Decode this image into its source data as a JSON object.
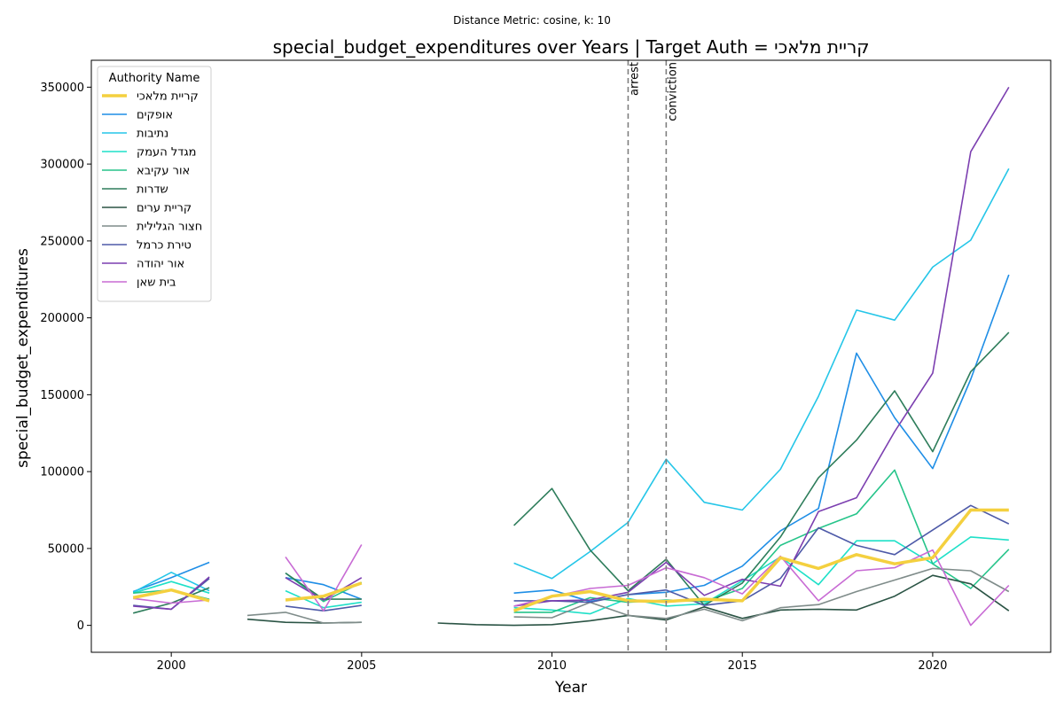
{
  "chart_data": {
    "type": "line",
    "suptitle": "Distance Metric: cosine, k: 10",
    "title": "special_budget_expenditures over Years | Target Auth = קריית מלאכי",
    "xlabel": "Year",
    "ylabel": "special_budget_expenditures",
    "xlim": [
      1997.9,
      2023.1
    ],
    "ylim": [
      -17500,
      367500
    ],
    "xticks": [
      2000,
      2005,
      2010,
      2015,
      2020
    ],
    "yticks": [
      0,
      50000,
      100000,
      150000,
      200000,
      250000,
      300000,
      350000
    ],
    "grid": false,
    "legend": {
      "title": "Authority Name",
      "placement": "upper-left"
    },
    "vlines": [
      {
        "x": 2012,
        "label": "arrest",
        "color": "#808080"
      },
      {
        "x": 2013,
        "label": "conviction",
        "color": "#808080"
      }
    ],
    "series": [
      {
        "name": "קריית מלאכי",
        "color": "#f4d03f",
        "target": true,
        "points": [
          [
            1999,
            18000
          ],
          [
            2000,
            23000
          ],
          [
            2001,
            16000
          ],
          [
            null,
            null
          ],
          [
            2003,
            16500
          ],
          [
            2004,
            19000
          ],
          [
            2005,
            27500
          ],
          [
            null,
            null
          ],
          [
            2009,
            9500
          ],
          [
            2010,
            19000
          ],
          [
            2011,
            22000
          ],
          [
            2012,
            16000
          ],
          [
            2013,
            15500
          ],
          [
            2014,
            17000
          ],
          [
            2015,
            16000
          ],
          [
            2016,
            44000
          ],
          [
            2017,
            37000
          ],
          [
            2018,
            46000
          ],
          [
            2019,
            40000
          ],
          [
            2020,
            44000
          ],
          [
            2021,
            75000
          ],
          [
            2022,
            75000
          ]
        ]
      },
      {
        "name": "אופקים",
        "color": "#1f8ee6",
        "points": [
          [
            1999,
            22000
          ],
          [
            2000,
            31000
          ],
          [
            2001,
            41000
          ],
          [
            null,
            null
          ],
          [
            2003,
            31000
          ],
          [
            2004,
            26500
          ],
          [
            2005,
            17000
          ],
          [
            null,
            null
          ],
          [
            2009,
            21000
          ],
          [
            2010,
            23000
          ],
          [
            2011,
            15500
          ],
          [
            2012,
            20000
          ],
          [
            2013,
            21500
          ],
          [
            2014,
            26000
          ],
          [
            2015,
            38500
          ],
          [
            2016,
            61500
          ],
          [
            2017,
            76000
          ],
          [
            2018,
            177000
          ],
          [
            2019,
            135000
          ],
          [
            2020,
            102000
          ],
          [
            2021,
            160000
          ],
          [
            2022,
            228000
          ]
        ]
      },
      {
        "name": "נתיבות",
        "color": "#25c6e8",
        "points": [
          [
            1999,
            21500
          ],
          [
            2000,
            34500
          ],
          [
            2001,
            22500
          ],
          [
            null,
            null
          ],
          [
            2009,
            40500
          ],
          [
            2010,
            30500
          ],
          [
            2011,
            48000
          ],
          [
            2012,
            67000
          ],
          [
            2013,
            108000
          ],
          [
            2014,
            80000
          ],
          [
            2015,
            75000
          ],
          [
            2016,
            101500
          ],
          [
            2017,
            149000
          ],
          [
            2018,
            205000
          ],
          [
            2019,
            198500
          ],
          [
            2020,
            233000
          ],
          [
            2021,
            250500
          ],
          [
            2022,
            297000
          ]
        ]
      },
      {
        "name": "מגדל העמק",
        "color": "#1fe0c8",
        "points": [
          [
            1999,
            21000
          ],
          [
            2000,
            28500
          ],
          [
            2001,
            21000
          ],
          [
            null,
            null
          ],
          [
            2003,
            22500
          ],
          [
            2004,
            11500
          ],
          [
            2005,
            15000
          ],
          [
            null,
            null
          ],
          [
            2009,
            11500
          ],
          [
            2010,
            10000
          ],
          [
            2011,
            7500
          ],
          [
            2012,
            17500
          ],
          [
            2013,
            12500
          ],
          [
            2014,
            14000
          ],
          [
            2015,
            29000
          ],
          [
            2016,
            44500
          ],
          [
            2017,
            26500
          ],
          [
            2018,
            55000
          ],
          [
            2019,
            55000
          ],
          [
            2020,
            40000
          ],
          [
            2021,
            57500
          ],
          [
            2022,
            55500
          ]
        ]
      },
      {
        "name": "אור עקיבא",
        "color": "#26c48a",
        "points": [
          [
            1999,
            21000
          ],
          [
            2000,
            23000
          ],
          [
            2001,
            17000
          ],
          [
            null,
            null
          ],
          [
            2003,
            34000
          ],
          [
            2004,
            15500
          ],
          [
            2005,
            28000
          ],
          [
            null,
            null
          ],
          [
            2009,
            8500
          ],
          [
            2010,
            8500
          ],
          [
            2011,
            18000
          ],
          [
            2012,
            15000
          ],
          [
            2013,
            16500
          ],
          [
            2014,
            15500
          ],
          [
            2015,
            24000
          ],
          [
            2016,
            52000
          ],
          [
            2017,
            63000
          ],
          [
            2018,
            72500
          ],
          [
            2019,
            101000
          ],
          [
            2020,
            40000
          ],
          [
            2021,
            24000
          ],
          [
            2022,
            49500
          ]
        ]
      },
      {
        "name": "שדרות",
        "color": "#2e7d5b",
        "points": [
          [
            1999,
            8000
          ],
          [
            2000,
            14500
          ],
          [
            2001,
            24500
          ],
          [
            null,
            null
          ],
          [
            2003,
            34000
          ],
          [
            2004,
            17000
          ],
          [
            2005,
            17000
          ],
          [
            null,
            null
          ],
          [
            2009,
            65000
          ],
          [
            2010,
            89000
          ],
          [
            2011,
            49000
          ],
          [
            2012,
            22500
          ],
          [
            2013,
            43000
          ],
          [
            2014,
            13000
          ],
          [
            2015,
            27500
          ],
          [
            2016,
            57500
          ],
          [
            2017,
            96000
          ],
          [
            2018,
            120500
          ],
          [
            2019,
            152500
          ],
          [
            2020,
            113000
          ],
          [
            2021,
            165000
          ],
          [
            2022,
            190500
          ]
        ]
      },
      {
        "name": "קריית ערים",
        "color": "#2b5445",
        "points": [
          [
            2002,
            4000
          ],
          [
            2003,
            2000
          ],
          [
            2004,
            1500
          ],
          [
            2005,
            2000
          ],
          [
            null,
            null
          ],
          [
            2007,
            1500
          ],
          [
            2008,
            500
          ],
          [
            2009,
            0
          ],
          [
            2010,
            500
          ],
          [
            2011,
            3000
          ],
          [
            2012,
            6500
          ],
          [
            2013,
            3500
          ],
          [
            2014,
            12000
          ],
          [
            2015,
            4500
          ],
          [
            2016,
            10000
          ],
          [
            2017,
            10500
          ],
          [
            2018,
            10000
          ],
          [
            2019,
            19000
          ],
          [
            2020,
            32500
          ],
          [
            2021,
            27000
          ],
          [
            2022,
            9500
          ]
        ]
      },
      {
        "name": "חצור הגלילית",
        "color": "#7f8c8a",
        "points": [
          [
            2002,
            6500
          ],
          [
            2003,
            8500
          ],
          [
            2004,
            1500
          ],
          [
            2005,
            2000
          ],
          [
            null,
            null
          ],
          [
            2009,
            5500
          ],
          [
            2010,
            5000
          ],
          [
            2011,
            15000
          ],
          [
            2012,
            6500
          ],
          [
            2013,
            4500
          ],
          [
            2014,
            10500
          ],
          [
            2015,
            3000
          ],
          [
            2016,
            11500
          ],
          [
            2017,
            13500
          ],
          [
            2018,
            22000
          ],
          [
            2019,
            29500
          ],
          [
            2020,
            37000
          ],
          [
            2021,
            35500
          ],
          [
            2022,
            22000
          ]
        ]
      },
      {
        "name": "טירת כרמל",
        "color": "#4e5aa8",
        "points": [
          [
            1999,
            13000
          ],
          [
            2000,
            10500
          ],
          [
            2001,
            30500
          ],
          [
            null,
            null
          ],
          [
            2003,
            12500
          ],
          [
            2004,
            9500
          ],
          [
            2005,
            13000
          ],
          [
            null,
            null
          ],
          [
            2009,
            16000
          ],
          [
            2010,
            16000
          ],
          [
            2011,
            15000
          ],
          [
            2012,
            20000
          ],
          [
            2013,
            23000
          ],
          [
            2014,
            13000
          ],
          [
            2015,
            16000
          ],
          [
            2016,
            30500
          ],
          [
            2017,
            63500
          ],
          [
            2018,
            52000
          ],
          [
            2019,
            46000
          ],
          [
            2020,
            62000
          ],
          [
            2021,
            78000
          ],
          [
            2022,
            66000
          ]
        ]
      },
      {
        "name": "אור יהודה",
        "color": "#7c3fb0",
        "points": [
          [
            1999,
            12500
          ],
          [
            2000,
            10500
          ],
          [
            2001,
            31500
          ],
          [
            null,
            null
          ],
          [
            2003,
            31000
          ],
          [
            2004,
            16500
          ],
          [
            2005,
            31000
          ],
          [
            null,
            null
          ],
          [
            2009,
            12500
          ],
          [
            2010,
            16000
          ],
          [
            2011,
            16500
          ],
          [
            2012,
            21500
          ],
          [
            2013,
            41000
          ],
          [
            2014,
            19500
          ],
          [
            2015,
            30000
          ],
          [
            2016,
            25500
          ],
          [
            2017,
            74000
          ],
          [
            2018,
            83000
          ],
          [
            2019,
            126000
          ],
          [
            2020,
            164000
          ],
          [
            2021,
            308000
          ],
          [
            2022,
            350000
          ]
        ]
      },
      {
        "name": "בית שאן",
        "color": "#c86bd4",
        "points": [
          [
            1999,
            17500
          ],
          [
            2000,
            14500
          ],
          [
            2001,
            16500
          ],
          [
            null,
            null
          ],
          [
            2003,
            44500
          ],
          [
            2004,
            9500
          ],
          [
            2005,
            52500
          ],
          [
            null,
            null
          ],
          [
            2009,
            12500
          ],
          [
            2010,
            18500
          ],
          [
            2011,
            24000
          ],
          [
            2012,
            26000
          ],
          [
            2013,
            37500
          ],
          [
            2014,
            31000
          ],
          [
            2015,
            20500
          ],
          [
            2016,
            45000
          ],
          [
            2017,
            16000
          ],
          [
            2018,
            35500
          ],
          [
            2019,
            37500
          ],
          [
            2020,
            49000
          ],
          [
            2021,
            0
          ],
          [
            2022,
            26000
          ]
        ]
      }
    ]
  }
}
